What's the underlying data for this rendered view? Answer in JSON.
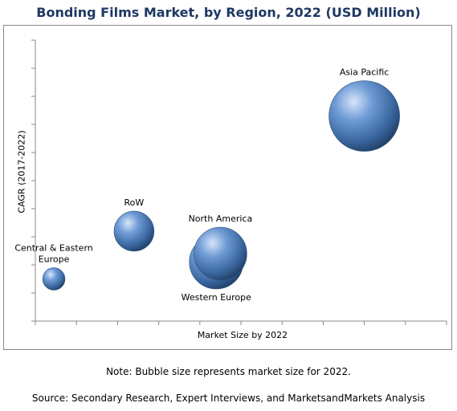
{
  "title": "Bonding Films Market, by Region, 2022 (USD Million)",
  "note": "Note: Bubble size represents market size for 2022.",
  "source": "Source: Secondary Research, Expert Interviews, and MarketsandMarkets Analysis",
  "chart_data": {
    "type": "scatter",
    "title": "Bonding Films Market, by Region, 2022 (USD Million)",
    "xlabel": "Market Size by 2022",
    "ylabel": "CAGR (2017-2022)",
    "xlim": [
      0,
      10
    ],
    "ylim": [
      0,
      10
    ],
    "grid": false,
    "legend": "none",
    "bubble_color": "#4a7ab8",
    "points": [
      {
        "label": "Asia Pacific",
        "label_lines": [
          "Asia Pacific"
        ],
        "x": 8.0,
        "y": 7.3,
        "size": 10,
        "label_position": "above"
      },
      {
        "label": "RoW",
        "label_lines": [
          "RoW"
        ],
        "x": 2.4,
        "y": 3.2,
        "size": 3.2,
        "label_position": "above"
      },
      {
        "label": "North America",
        "label_lines": [
          "North America"
        ],
        "x": 4.5,
        "y": 2.4,
        "size": 5.6,
        "label_position": "above"
      },
      {
        "label": "Western Europe",
        "label_lines": [
          "Western Europe"
        ],
        "x": 4.4,
        "y": 2.1,
        "size": 5.8,
        "label_position": "below"
      },
      {
        "label": "Central & Eastern Europe",
        "label_lines": [
          "Central & Eastern",
          "Europe"
        ],
        "x": 0.45,
        "y": 1.5,
        "size": 1,
        "label_position": "above"
      }
    ]
  }
}
